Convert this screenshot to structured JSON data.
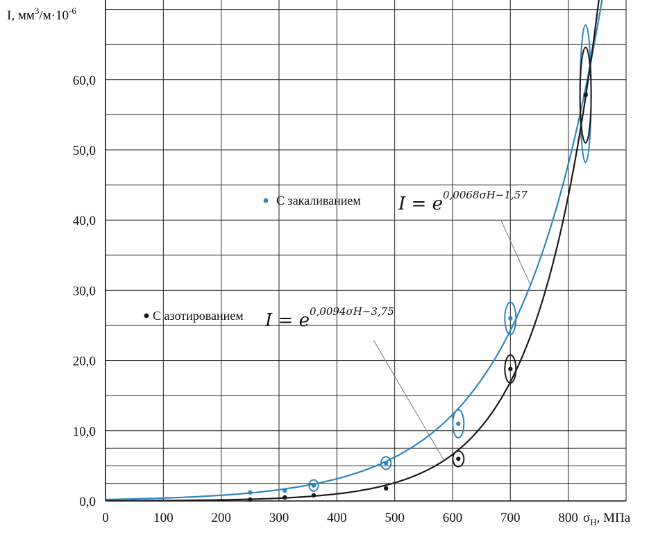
{
  "chart_data": {
    "type": "scatter",
    "title": "",
    "ylabel": "I, мм³/м·10⁻⁶",
    "ylabel_parts": {
      "base": "I, мм",
      "sup1": "3",
      "mid": "/м·10",
      "sup2": "-6"
    },
    "xlabel": "σH, МПа",
    "xlabel_parts": {
      "sym": "σ",
      "sub": "H",
      "rest": ", МПа"
    },
    "xlim": [
      0,
      860
    ],
    "ylim": [
      0,
      72
    ],
    "x_ticks": [
      0,
      100,
      200,
      300,
      400,
      500,
      600,
      700,
      800
    ],
    "x_tick_labels": [
      "0",
      "100",
      "200",
      "300",
      "400",
      "500",
      "600",
      "700",
      "800"
    ],
    "y_ticks": [
      0,
      10,
      20,
      30,
      40,
      50,
      60
    ],
    "y_tick_labels": [
      "0,0",
      "10,0",
      "20,0",
      "30,0",
      "40,0",
      "50,0",
      "60,0"
    ],
    "grid": true,
    "series": [
      {
        "name": "С закаливанием",
        "color": "#2e86c1",
        "formula": {
          "base": "I = e",
          "exponent": "0,0068σH−1,57"
        },
        "fit_a": 0.0068,
        "fit_b": -1.57,
        "x": [
          250,
          310,
          360,
          485,
          610,
          700,
          830
        ],
        "y": [
          1.2,
          1.5,
          2.2,
          5.4,
          11.0,
          26.0,
          58.0
        ],
        "ellipse_ry": [
          0,
          0,
          0.8,
          0.9,
          2.0,
          2.3,
          9.8
        ]
      },
      {
        "name": "С азотированием",
        "color": "#1a1a1a",
        "formula": {
          "base": "I = e",
          "exponent": "0,0094σH−3,75"
        },
        "fit_a": 0.0094,
        "fit_b": -3.75,
        "x": [
          250,
          310,
          360,
          485,
          610,
          700,
          830
        ],
        "y": [
          0.2,
          0.5,
          0.8,
          1.8,
          6.0,
          18.8,
          57.8
        ],
        "ellipse_ry": [
          0,
          0,
          0,
          0,
          1.1,
          2.0,
          6.8
        ]
      }
    ]
  }
}
